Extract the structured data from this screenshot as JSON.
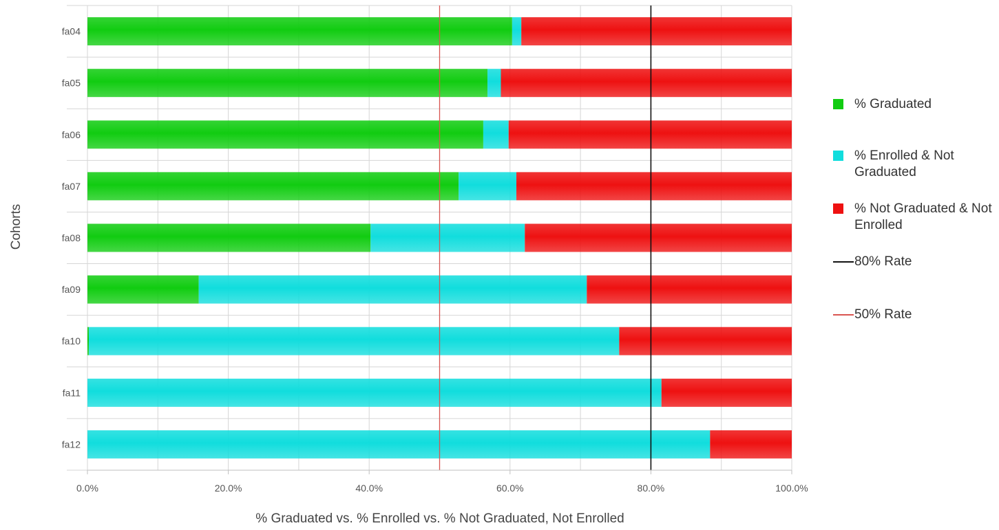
{
  "chart_data": {
    "type": "bar",
    "orientation": "horizontal",
    "stacked": true,
    "categories": [
      "fa04",
      "fa05",
      "fa06",
      "fa07",
      "fa08",
      "fa09",
      "fa10",
      "fa11",
      "fa12"
    ],
    "series": [
      {
        "name": "% Graduated",
        "color": "#11cc11",
        "values": [
          60.3,
          56.8,
          56.2,
          52.7,
          40.2,
          15.8,
          0.2,
          0.0,
          0.0
        ]
      },
      {
        "name": "% Enrolled & Not Graduated",
        "color": "#11dddd",
        "values": [
          1.3,
          1.9,
          3.6,
          8.2,
          21.9,
          55.1,
          75.3,
          81.5,
          88.4
        ]
      },
      {
        "name": "% Not Graduated & Not Enrolled",
        "color": "#ee1111",
        "values": [
          38.4,
          41.3,
          40.2,
          39.1,
          37.9,
          29.1,
          24.5,
          18.5,
          11.6
        ]
      }
    ],
    "reference_lines": [
      {
        "name": "80% Rate",
        "value": 80,
        "color": "#111111"
      },
      {
        "name": "50% Rate",
        "value": 50,
        "color": "#d9534f"
      }
    ],
    "xlim": [
      0,
      100
    ],
    "x_ticks": [
      0,
      20,
      40,
      60,
      80,
      100
    ],
    "x_tick_labels": [
      "0.0%",
      "20.0%",
      "40.0%",
      "60.0%",
      "80.0%",
      "100.0%"
    ],
    "xlabel": "% Graduated vs. % Enrolled vs. % Not Graduated, Not Enrolled",
    "ylabel": "Cohorts",
    "grid": true,
    "legend_position": "right"
  },
  "legend": {
    "items": [
      {
        "label": "% Graduated",
        "kind": "box",
        "color": "#11cc11"
      },
      {
        "label": "% Enrolled & Not Graduated",
        "kind": "box",
        "color": "#11dddd"
      },
      {
        "label": "% Not Graduated & Not Enrolled",
        "kind": "box",
        "color": "#ee1111"
      },
      {
        "label": "80% Rate",
        "kind": "line",
        "color": "#111111"
      },
      {
        "label": "50% Rate",
        "kind": "line",
        "color": "#d9534f"
      }
    ]
  }
}
